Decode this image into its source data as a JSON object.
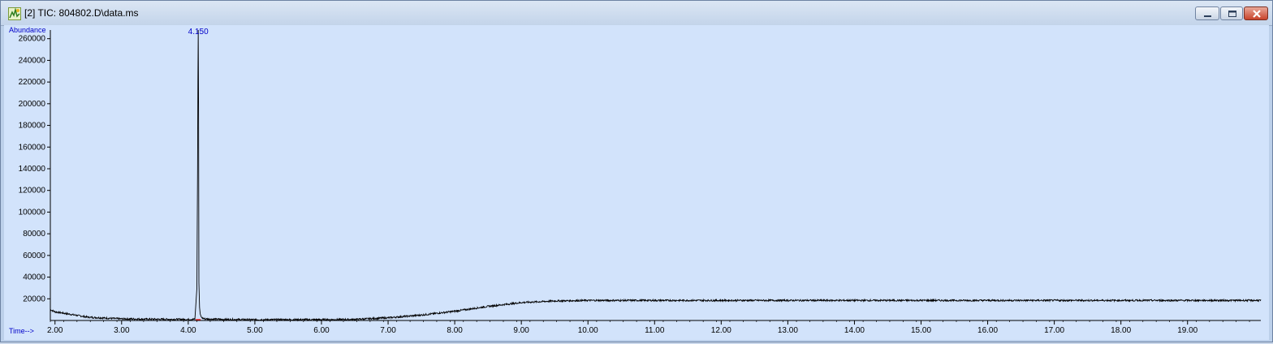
{
  "window": {
    "title": "[2] TIC: 804802.D\\data.ms",
    "icon": "chromatogram-app-icon",
    "buttons": {
      "minimize": "minimize-icon",
      "maximize": "maximize-icon",
      "close": "close-icon"
    }
  },
  "colors": {
    "plot_background": "#d2e3fb",
    "trace": "#000000",
    "label_blue": "#0000c8",
    "peak_marker": "#ff0000"
  },
  "chart_data": {
    "type": "line",
    "ylabel": "Abundance",
    "xlabel": "Time-->",
    "peak_label": "4.150",
    "xlim": [
      1.93,
      20.1
    ],
    "ylim": [
      0,
      268000
    ],
    "x_ticks": [
      2.0,
      3.0,
      4.0,
      5.0,
      6.0,
      7.0,
      8.0,
      9.0,
      10.0,
      11.0,
      12.0,
      13.0,
      14.0,
      15.0,
      16.0,
      17.0,
      18.0,
      19.0
    ],
    "x_tick_labels": [
      "2.00",
      "3.00",
      "4.00",
      "5.00",
      "6.00",
      "7.00",
      "8.00",
      "9.00",
      "10.00",
      "11.00",
      "12.00",
      "13.00",
      "14.00",
      "15.00",
      "16.00",
      "17.00",
      "18.00",
      "19.00"
    ],
    "y_ticks": [
      20000,
      40000,
      60000,
      80000,
      100000,
      120000,
      140000,
      160000,
      180000,
      200000,
      220000,
      240000,
      260000
    ],
    "y_tick_labels": [
      "20000",
      "40000",
      "60000",
      "80000",
      "100000",
      "120000",
      "140000",
      "160000",
      "180000",
      "200000",
      "220000",
      "240000",
      "260000"
    ],
    "series": [
      {
        "x": [
          1.93,
          2.0,
          2.2,
          2.5,
          3.0,
          3.5,
          4.0,
          4.1,
          4.13,
          4.14,
          4.145,
          4.15,
          4.155,
          4.16,
          4.17,
          4.18,
          4.2,
          4.25,
          4.5,
          5.0,
          6.0,
          6.5,
          7.0,
          7.5,
          8.0,
          8.5,
          9.0,
          9.5,
          10.0,
          11.0,
          12.0,
          13.0,
          14.0,
          15.0,
          16.0,
          17.0,
          18.0,
          19.0,
          20.0,
          20.1
        ],
        "y": [
          10000,
          8000,
          6000,
          3000,
          1500,
          1200,
          1000,
          1200,
          30000,
          140000,
          220000,
          268000,
          200000,
          35000,
          12000,
          6000,
          2500,
          1500,
          1000,
          800,
          800,
          1000,
          2500,
          5000,
          8500,
          13000,
          16500,
          18000,
          18500,
          18500,
          18500,
          18500,
          18500,
          18500,
          18500,
          18500,
          18500,
          18500,
          18500,
          18500
        ]
      }
    ]
  }
}
